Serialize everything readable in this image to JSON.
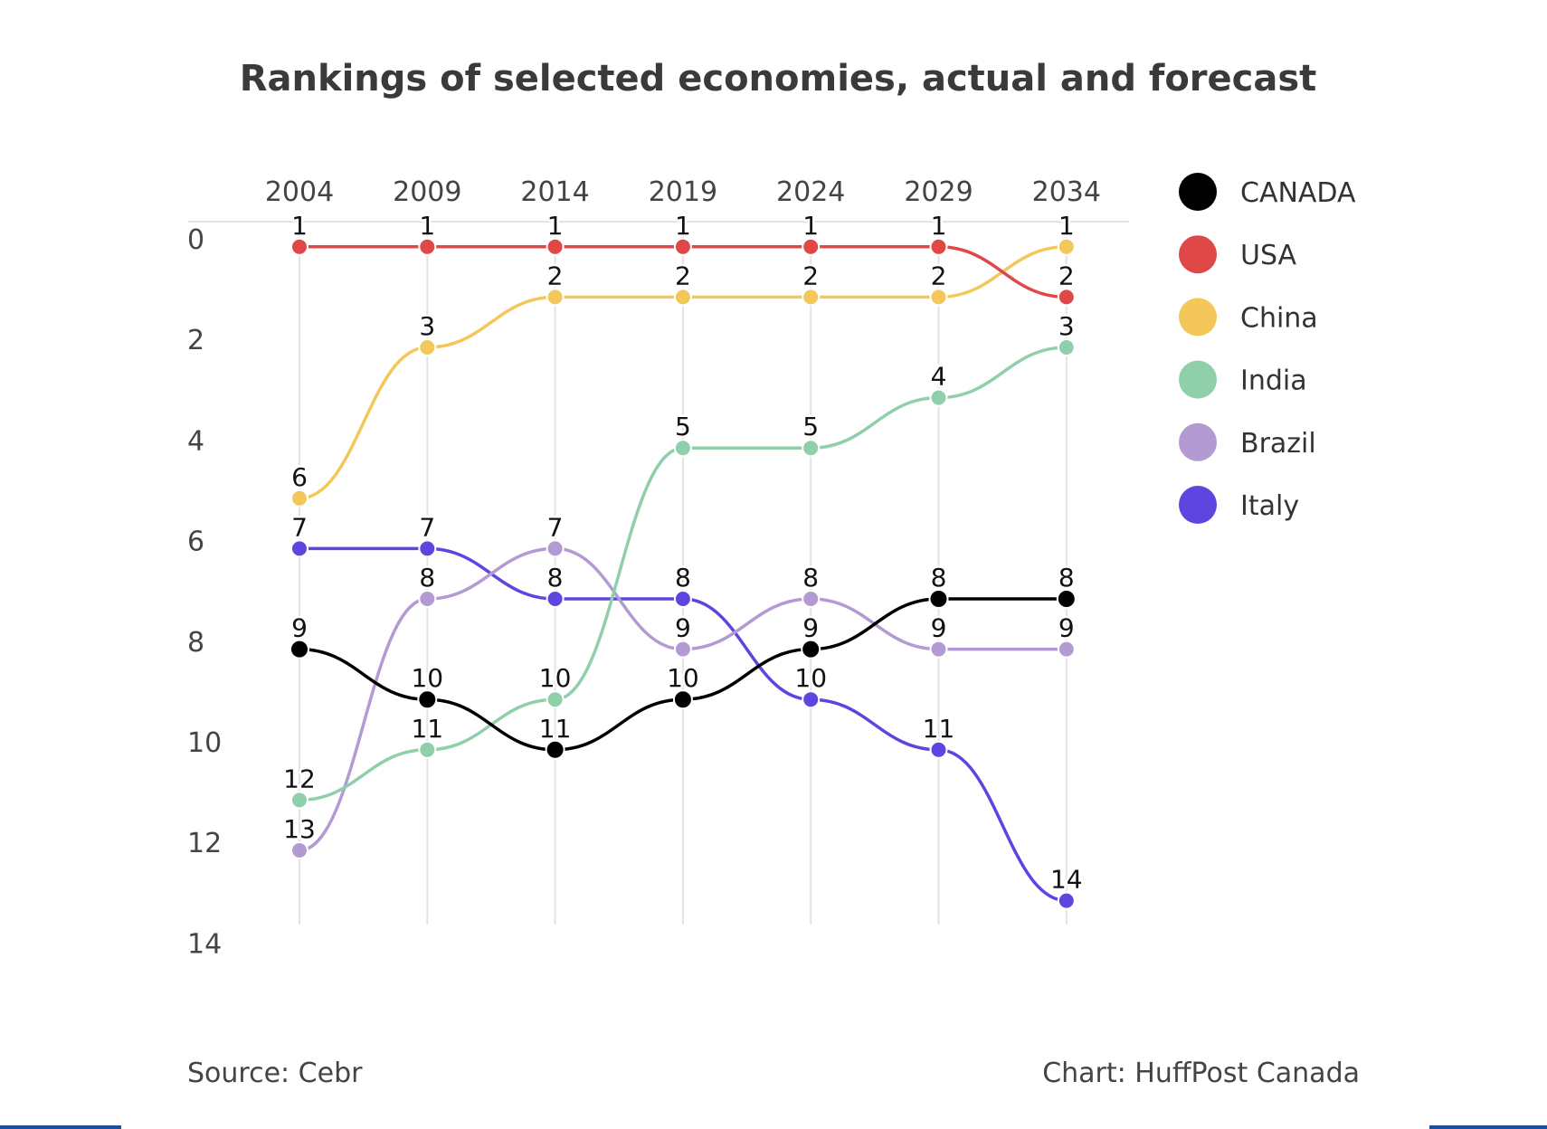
{
  "chart_data": {
    "type": "line",
    "title": "Rankings of selected economies, actual and forecast",
    "x": [
      "2004",
      "2009",
      "2014",
      "2019",
      "2024",
      "2029",
      "2034"
    ],
    "y_ticks": [
      "0",
      "2",
      "4",
      "6",
      "8",
      "10",
      "12",
      "14"
    ],
    "ylim": [
      0,
      14
    ],
    "y_inverted": true,
    "grid": true,
    "legend_position": "right",
    "series": [
      {
        "name": "CANADA",
        "color": "#000000",
        "values": [
          9,
          10,
          11,
          10,
          9,
          8,
          8
        ]
      },
      {
        "name": "USA",
        "color": "#e04848",
        "values": [
          1,
          1,
          1,
          1,
          1,
          1,
          2
        ]
      },
      {
        "name": "China",
        "color": "#f3c75a",
        "values": [
          6,
          3,
          2,
          2,
          2,
          2,
          1
        ]
      },
      {
        "name": "India",
        "color": "#8fcfaa",
        "values": [
          12,
          11,
          10,
          5,
          5,
          4,
          3
        ]
      },
      {
        "name": "Brazil",
        "color": "#b39ad3",
        "values": [
          13,
          8,
          7,
          9,
          8,
          9,
          9
        ]
      },
      {
        "name": "Italy",
        "color": "#5e45e0",
        "values": [
          7,
          7,
          8,
          8,
          10,
          11,
          14
        ]
      }
    ]
  },
  "footer": {
    "source": "Source: Cebr",
    "credit": "Chart: HuffPost Canada"
  }
}
